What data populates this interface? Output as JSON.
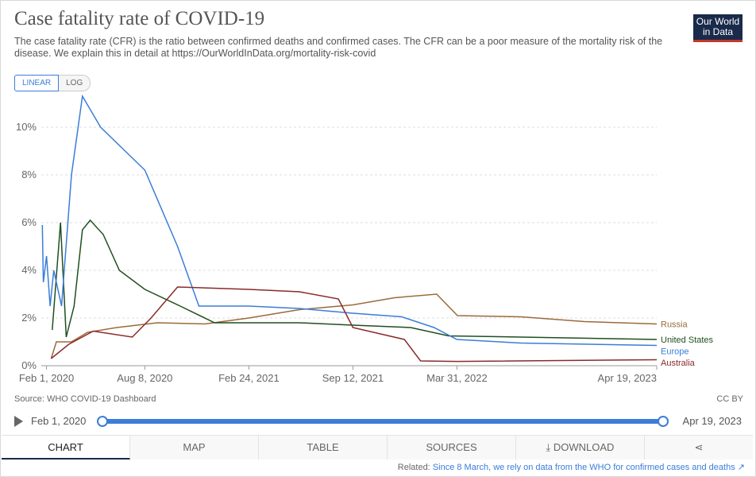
{
  "header": {
    "title": "Case fatality rate of COVID-19",
    "subtitle": "The case fatality rate (CFR) is the ratio between confirmed deaths and confirmed cases. The CFR can be a poor measure of the mortality risk of the disease. We explain this in detail at https://OurWorldInData.org/mortality-risk-covid",
    "logo_line1": "Our World",
    "logo_line2": "in Data"
  },
  "scale_toggle": {
    "linear": "LINEAR",
    "log": "LOG"
  },
  "chart_data": {
    "type": "line",
    "title": "Case fatality rate of COVID-19",
    "x_ticks": [
      "Feb 1, 2020",
      "Aug 8, 2020",
      "Feb 24, 2021",
      "Sep 12, 2021",
      "Mar 31, 2022",
      "Apr 19, 2023"
    ],
    "y_ticks": [
      "0%",
      "2%",
      "4%",
      "6%",
      "8%",
      "10%"
    ],
    "xlim": [
      "2020-01-22",
      "2023-04-19"
    ],
    "ylim": [
      0,
      11.5
    ],
    "grid": true,
    "legend": "right-end labels",
    "series": [
      {
        "name": "Russia",
        "color": "#9a6b3a",
        "points": [
          [
            "2020-02-10",
            0.3
          ],
          [
            "2020-02-20",
            1.0
          ],
          [
            "2020-03-20",
            1.0
          ],
          [
            "2020-04-20",
            1.4
          ],
          [
            "2020-06-15",
            1.6
          ],
          [
            "2020-09-01",
            1.8
          ],
          [
            "2020-12-01",
            1.75
          ],
          [
            "2021-02-24",
            2.0
          ],
          [
            "2021-06-01",
            2.35
          ],
          [
            "2021-09-12",
            2.55
          ],
          [
            "2021-12-01",
            2.85
          ],
          [
            "2022-02-20",
            3.0
          ],
          [
            "2022-04-01",
            2.1
          ],
          [
            "2022-08-01",
            2.05
          ],
          [
            "2022-12-01",
            1.85
          ],
          [
            "2023-04-19",
            1.75
          ]
        ]
      },
      {
        "name": "United States",
        "color": "#1f4f1f",
        "points": [
          [
            "2020-02-12",
            1.5
          ],
          [
            "2020-02-28",
            6.0
          ],
          [
            "2020-03-10",
            1.2
          ],
          [
            "2020-03-25",
            2.5
          ],
          [
            "2020-04-10",
            5.7
          ],
          [
            "2020-04-25",
            6.1
          ],
          [
            "2020-05-20",
            5.5
          ],
          [
            "2020-06-20",
            4.0
          ],
          [
            "2020-08-08",
            3.2
          ],
          [
            "2020-10-15",
            2.5
          ],
          [
            "2020-12-20",
            1.8
          ],
          [
            "2021-02-24",
            1.8
          ],
          [
            "2021-06-01",
            1.8
          ],
          [
            "2021-09-12",
            1.7
          ],
          [
            "2022-01-01",
            1.6
          ],
          [
            "2022-03-15",
            1.25
          ],
          [
            "2022-08-01",
            1.2
          ],
          [
            "2023-04-19",
            1.1
          ]
        ]
      },
      {
        "name": "Europe",
        "color": "#3b7dd8",
        "points": [
          [
            "2020-01-24",
            5.9
          ],
          [
            "2020-01-26",
            3.5
          ],
          [
            "2020-02-01",
            4.6
          ],
          [
            "2020-02-08",
            2.5
          ],
          [
            "2020-02-15",
            4.0
          ],
          [
            "2020-03-01",
            2.5
          ],
          [
            "2020-03-20",
            8.0
          ],
          [
            "2020-04-10",
            11.3
          ],
          [
            "2020-05-15",
            10.0
          ],
          [
            "2020-08-08",
            8.2
          ],
          [
            "2020-10-10",
            5.0
          ],
          [
            "2020-11-20",
            2.5
          ],
          [
            "2021-02-24",
            2.5
          ],
          [
            "2021-06-01",
            2.4
          ],
          [
            "2021-09-12",
            2.2
          ],
          [
            "2021-12-15",
            2.05
          ],
          [
            "2022-02-15",
            1.6
          ],
          [
            "2022-03-31",
            1.1
          ],
          [
            "2022-08-01",
            0.95
          ],
          [
            "2023-04-19",
            0.85
          ]
        ]
      },
      {
        "name": "Australia",
        "color": "#8a2a2a",
        "points": [
          [
            "2020-02-10",
            0.3
          ],
          [
            "2020-03-15",
            0.9
          ],
          [
            "2020-05-01",
            1.45
          ],
          [
            "2020-07-15",
            1.2
          ],
          [
            "2020-08-20",
            2.0
          ],
          [
            "2020-10-10",
            3.3
          ],
          [
            "2021-02-24",
            3.2
          ],
          [
            "2021-06-01",
            3.1
          ],
          [
            "2021-08-15",
            2.8
          ],
          [
            "2021-09-12",
            1.6
          ],
          [
            "2021-12-20",
            1.1
          ],
          [
            "2022-01-20",
            0.2
          ],
          [
            "2022-03-31",
            0.18
          ],
          [
            "2023-04-19",
            0.25
          ]
        ]
      }
    ]
  },
  "footer": {
    "source": "Source: WHO COVID-19 Dashboard",
    "license": "CC BY",
    "timeline_start": "Feb 1, 2020",
    "timeline_end": "Apr 19, 2023",
    "tabs": [
      "CHART",
      "MAP",
      "TABLE",
      "SOURCES",
      "DOWNLOAD"
    ],
    "related_prefix": "Related:",
    "related_link": "Since 8 March, we rely on data from the WHO for confirmed cases and deaths"
  }
}
